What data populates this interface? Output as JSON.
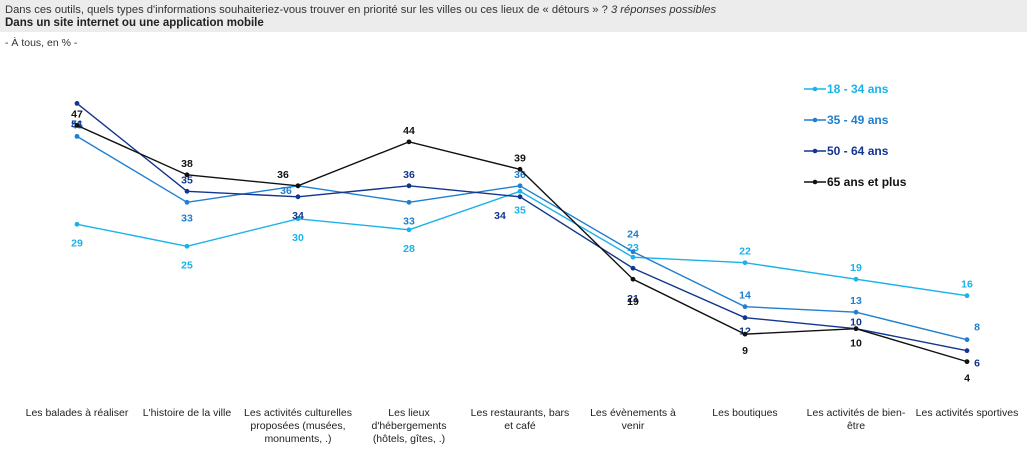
{
  "header": {
    "question": "Dans ces outils, quels types d'informations souhaiteriez-vous trouver en priorité sur les villes ou ces lieux de « détours » ?",
    "note": "3 réponses possibles",
    "subtitle": "Dans un site internet ou une application mobile",
    "base": "- À tous, en % -"
  },
  "chart_data": {
    "type": "line",
    "categories": [
      "Les balades à réaliser",
      "L'histoire de la ville",
      "Les activités culturelles proposées (musées, monuments, .)",
      "Les lieux d'hébergements (hôtels, gîtes, .)",
      "Les restaurants, bars et café",
      "Les évènements à venir",
      "Les boutiques",
      "Les activités de bien-être",
      "Les activités sportives"
    ],
    "category_lines": [
      [
        "Les balades à réaliser"
      ],
      [
        "L'histoire de la ville"
      ],
      [
        "Les activités culturelles",
        "proposées (musées,",
        "monuments, .)"
      ],
      [
        "Les lieux",
        "d'hébergements",
        "(hôtels, gîtes, .)"
      ],
      [
        "Les restaurants, bars",
        "et café"
      ],
      [
        "Les évènements à",
        "venir"
      ],
      [
        "Les boutiques"
      ],
      [
        "Les activités de bien-",
        "être"
      ],
      [
        "Les activités sportives"
      ]
    ],
    "series": [
      {
        "name": "18 - 34 ans",
        "color": "#1ab2ea",
        "values": [
          29,
          25,
          30,
          28,
          35,
          23,
          22,
          19,
          16
        ]
      },
      {
        "name": "35 - 49 ans",
        "color": "#1f7fd0",
        "values": [
          45,
          33,
          36,
          33,
          36,
          24,
          14,
          13,
          8
        ]
      },
      {
        "name": "50 - 64 ans",
        "color": "#12368f",
        "values": [
          51,
          35,
          34,
          36,
          34,
          21,
          12,
          10,
          6
        ]
      },
      {
        "name": "65 ans et plus",
        "color": "#111111",
        "values": [
          47,
          38,
          36,
          44,
          39,
          19,
          9,
          10,
          4
        ]
      }
    ],
    "ylim": [
      0,
      55
    ],
    "grid": false,
    "legend": "top-right"
  }
}
